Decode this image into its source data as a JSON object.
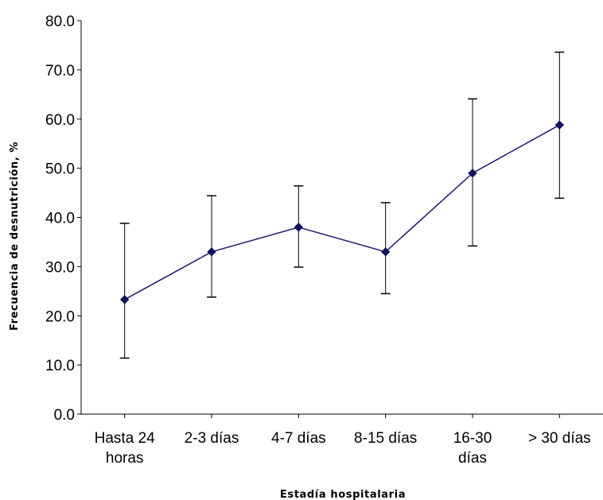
{
  "chart_data": {
    "type": "line",
    "xlabel": "Estadía hospitalaria",
    "ylabel": "Frecuencia de desnutrición, %",
    "ylim": [
      0,
      80
    ],
    "yticks": [
      "0.0",
      "10.0",
      "20.0",
      "30.0",
      "40.0",
      "50.0",
      "60.0",
      "70.0",
      "80.0"
    ],
    "categories": [
      [
        "Hasta 24",
        "horas"
      ],
      [
        "2-3 días"
      ],
      [
        "4-7 días"
      ],
      [
        "8-15 días"
      ],
      [
        "16-30",
        "días"
      ],
      [
        "> 30 días"
      ]
    ],
    "series": [
      {
        "values": [
          23.3,
          33.0,
          38.0,
          33.0,
          49.0,
          58.8
        ],
        "error_low": [
          11.4,
          23.8,
          29.9,
          24.5,
          34.2,
          43.9
        ],
        "error_high": [
          38.8,
          44.4,
          46.4,
          43.0,
          64.1,
          73.6
        ]
      }
    ],
    "grid": false,
    "colors": {
      "line": "#1a1a6b",
      "marker": "#14145c",
      "error_bars": "#000000",
      "axes": "#000000"
    }
  }
}
